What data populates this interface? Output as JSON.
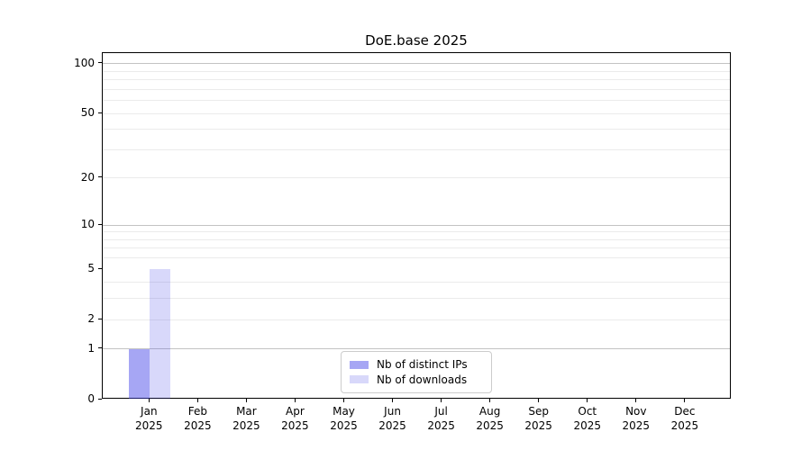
{
  "figure": {
    "title": "DoE.base 2025"
  },
  "chart_data": {
    "type": "bar",
    "title": "DoE.base 2025",
    "categories": [
      "Jan",
      "Feb",
      "Mar",
      "Apr",
      "May",
      "Jun",
      "Jul",
      "Aug",
      "Sep",
      "Oct",
      "Nov",
      "Dec"
    ],
    "category_year_label": "2025",
    "series": [
      {
        "name": "Nb of distinct IPs",
        "color": "rgba(60,60,230,0.46)",
        "values": [
          1,
          0,
          0,
          0,
          0,
          0,
          0,
          0,
          0,
          0,
          0,
          0
        ]
      },
      {
        "name": "Nb of downloads",
        "color": "rgba(60,60,230,0.20)",
        "values": [
          5,
          0,
          0,
          0,
          0,
          0,
          0,
          0,
          0,
          0,
          0,
          0
        ]
      }
    ],
    "xlabel": "",
    "ylabel": "",
    "yscale": "log1p",
    "ylim": [
      0,
      116
    ],
    "yticks": [
      0,
      1,
      2,
      5,
      10,
      20,
      50,
      100
    ],
    "gridlines": {
      "major": [
        1,
        10,
        100
      ],
      "minor": [
        2,
        3,
        4,
        6,
        7,
        8,
        9,
        20,
        30,
        40,
        50,
        60,
        70,
        80,
        90
      ]
    },
    "grid": true,
    "legend_position": "lower center",
    "colors": {
      "spine": "#000000",
      "major_grid": "#c3c3c3",
      "minor_grid": "#ebebeb",
      "legend_border": "#cccccc"
    }
  }
}
